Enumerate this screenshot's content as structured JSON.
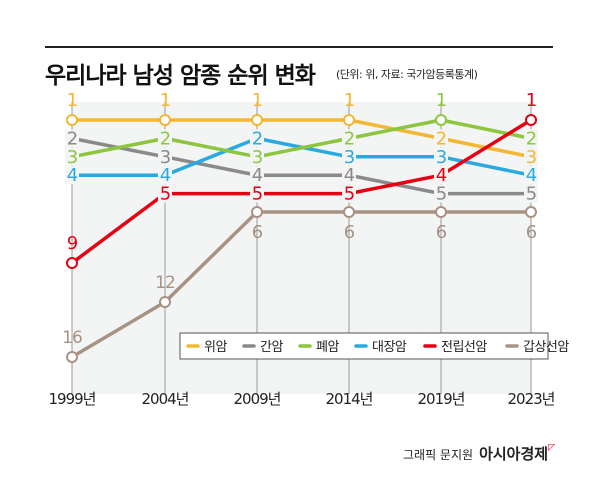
{
  "title": "우리나라 남성 암종 순위 변화",
  "subtitle": "(단위: 위, 자료: 국가암등록통계)",
  "footer": {
    "credit": "그래픽 문지원",
    "brand": "아시아경제"
  },
  "chart_data": {
    "type": "line",
    "title": "우리나라 남성 암종 순위 변화",
    "x": [
      "1999년",
      "2004년",
      "2009년",
      "2014년",
      "2019년",
      "2023년"
    ],
    "y_reversed": true,
    "grid": "vertical",
    "legend": "bottom-right",
    "series": [
      {
        "name": "위암",
        "color": "#f5b731",
        "values": [
          1,
          1,
          1,
          1,
          2,
          3
        ]
      },
      {
        "name": "간암",
        "color": "#8a8a8a",
        "values": [
          2,
          3,
          4,
          4,
          5,
          5
        ]
      },
      {
        "name": "폐암",
        "color": "#8cc63f",
        "values": [
          3,
          2,
          3,
          2,
          1,
          2
        ]
      },
      {
        "name": "대장암",
        "color": "#29a9e0",
        "values": [
          4,
          4,
          2,
          3,
          3,
          4
        ]
      },
      {
        "name": "전립선암",
        "color": "#e60012",
        "values": [
          9,
          5,
          5,
          5,
          4,
          1
        ]
      },
      {
        "name": "갑상선암",
        "color": "#a89283",
        "values": [
          16,
          12,
          6,
          6,
          6,
          6
        ]
      }
    ]
  }
}
